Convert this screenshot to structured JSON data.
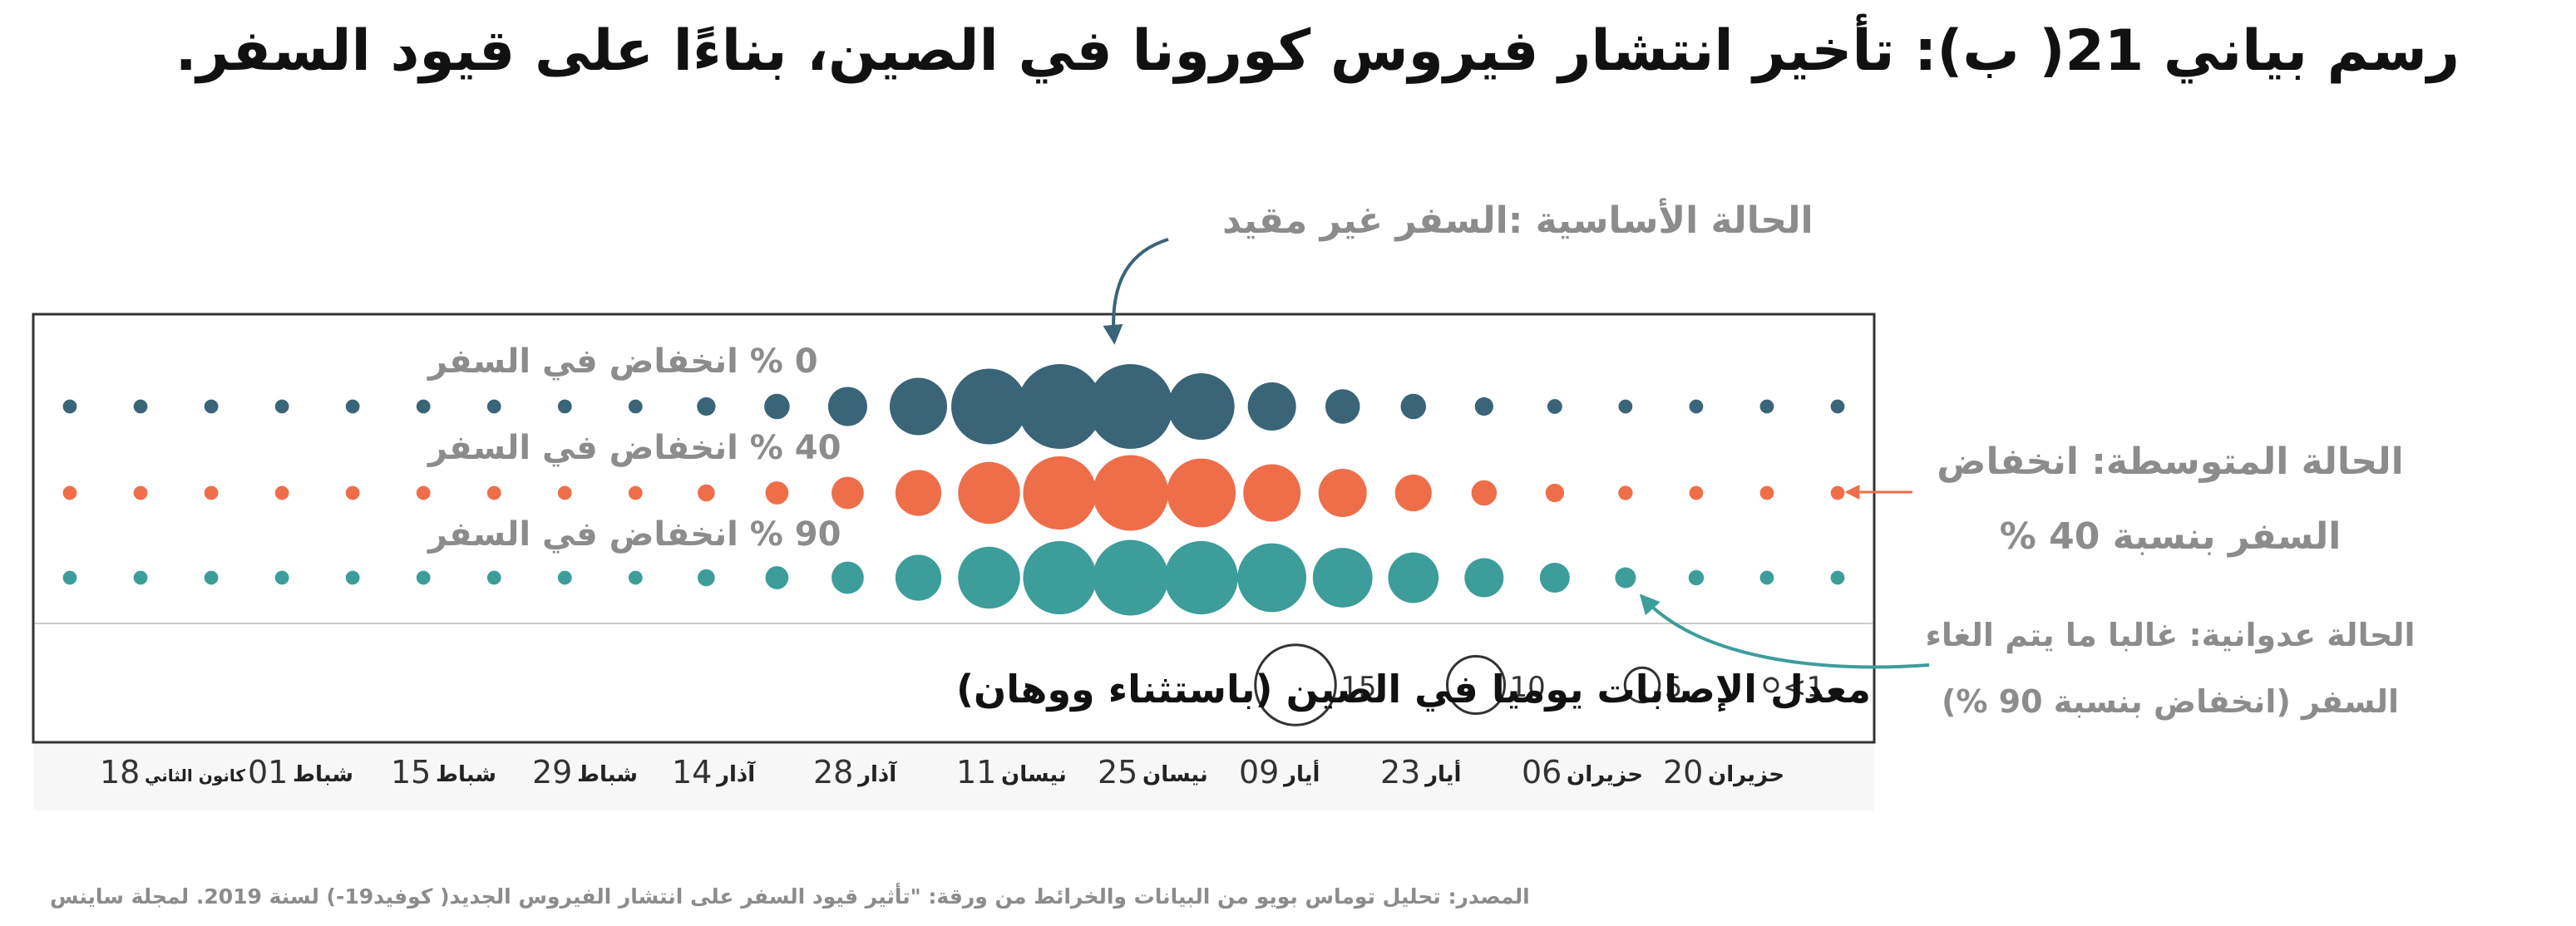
{
  "title": "رسم بياني 21( ب): تأخير انتشار فيروس كورونا في الصين، بناءًا على قيود السفر.",
  "annotations": {
    "baseline": "الحالة الأساسية :السفر غير مقيد",
    "moderate_line1": "الحالة المتوسطة: انخفاض",
    "moderate_line2": "السفر بنسبة 40 %",
    "aggressive_line1": "الحالة عدوانية: غالبا ما  يتم الغاء",
    "aggressive_line2": "السفر (انخفاض بنسبة 90 %)"
  },
  "source": "المصدر: تحليل توماس بويو من البيانات والخرائط من ورقة: \"تأثير قيود السفر على انتشار الفيروس الجديد( كوفيد19-)  لسنة 2019. لمجلة ساينس",
  "colors": {
    "baseline": "#3a6478",
    "moderate": "#ee6e4a",
    "aggressive": "#3c9d9b",
    "annotation_text": "#8c8c8c",
    "frame": "#333333"
  },
  "chart_data": {
    "type": "bubble",
    "title": "معدل الإصابات يوميا في الصين (باستثناء ووهان)",
    "x_tick_labels": [
      {
        "day": "18",
        "month": "كانون الثاني"
      },
      {
        "day": "01",
        "month": "شباط"
      },
      {
        "day": "15",
        "month": "شباط"
      },
      {
        "day": "29",
        "month": "شباط"
      },
      {
        "day": "14",
        "month": "آذار"
      },
      {
        "day": "28",
        "month": "آذار"
      },
      {
        "day": "11",
        "month": "نيسان"
      },
      {
        "day": "25",
        "month": "نيسان"
      },
      {
        "day": "09",
        "month": "أيار"
      },
      {
        "day": "23",
        "month": "أيار"
      },
      {
        "day": "06",
        "month": "حزيران"
      },
      {
        "day": "20",
        "month": "حزيران"
      }
    ],
    "size_legend": [
      {
        "label": "<1",
        "value": 0.5
      },
      {
        "label": "5",
        "value": 5
      },
      {
        "label": "10",
        "value": 10
      },
      {
        "label": "15",
        "value": 15
      }
    ],
    "series": [
      {
        "name": "0 % انخفاض في السفر",
        "color_key": "baseline",
        "values": [
          0.5,
          0.5,
          0.5,
          0.5,
          0.5,
          0.5,
          0.5,
          0.5,
          0.5,
          1.5,
          3,
          6,
          10,
          14,
          16,
          16,
          12,
          8,
          5,
          3,
          1.5,
          0.7,
          0.5,
          0.5,
          0.5,
          0.5
        ]
      },
      {
        "name": "40 % انخفاض في السفر",
        "color_key": "moderate",
        "values": [
          0.5,
          0.5,
          0.5,
          0.5,
          0.5,
          0.5,
          0.5,
          0.5,
          0.5,
          1.2,
          2.5,
          4.5,
          7.5,
          11,
          13.5,
          14,
          12.5,
          10,
          8,
          5.5,
          3,
          1.5,
          0.6,
          0.5,
          0.5,
          0.5
        ]
      },
      {
        "name": "90 % انخفاض في السفر",
        "color_key": "aggressive",
        "values": [
          0.5,
          0.5,
          0.5,
          0.5,
          0.5,
          0.5,
          0.5,
          0.5,
          0.5,
          1.2,
          2.5,
          4.5,
          7.5,
          11,
          13.5,
          14,
          13.5,
          12.5,
          10.5,
          8.5,
          6,
          4,
          2,
          0.8,
          0.5,
          0.5
        ]
      }
    ]
  }
}
